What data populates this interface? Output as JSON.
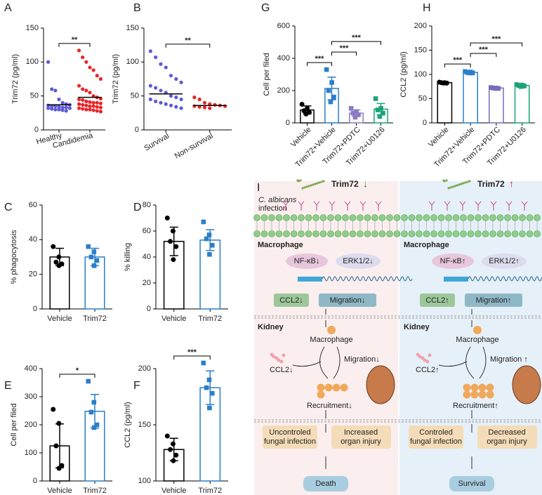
{
  "chart_data": [
    {
      "type": "dot",
      "panel": "A",
      "ylabel": "Trim72 (pg/ml)",
      "categories": [
        "Healthy",
        "Candidemia"
      ],
      "colors": [
        "#5b5bd6",
        "#e8262a"
      ],
      "points": [
        [
          100,
          60,
          58,
          45,
          40,
          38,
          37,
          36,
          35,
          35,
          34,
          33,
          33,
          32,
          32,
          31,
          30,
          30,
          29,
          28
        ],
        [
          117,
          107,
          100,
          92,
          88,
          80,
          75,
          65,
          60,
          58,
          55,
          50,
          48,
          46,
          45,
          44,
          42,
          41,
          40,
          40,
          39,
          38,
          37,
          36,
          35,
          35,
          34,
          33,
          32,
          31,
          30,
          30,
          29,
          28,
          27
        ]
      ],
      "values": [
        37,
        48
      ],
      "ylim": [
        0,
        150
      ],
      "yticks": [
        0,
        50,
        100,
        150
      ],
      "annotations": [
        {
          "text": "**",
          "between": [
            0,
            1
          ]
        }
      ]
    },
    {
      "type": "dot",
      "panel": "B",
      "ylabel": "Trim72 (pg/ml)",
      "categories": [
        "Survival",
        "Non-survival"
      ],
      "colors": [
        "#5b5bd6",
        "#e8262a"
      ],
      "points": [
        [
          116,
          107,
          97,
          92,
          80,
          75,
          70,
          65,
          62,
          58,
          55,
          50,
          48,
          45,
          45,
          42,
          40,
          38,
          36,
          34,
          32
        ],
        [
          48,
          45,
          40,
          38,
          37,
          36,
          35,
          35,
          34,
          33,
          32
        ]
      ],
      "values": [
        53,
        36
      ],
      "ylim": [
        0,
        150
      ],
      "yticks": [
        0,
        50,
        100,
        150
      ],
      "annotations": [
        {
          "text": "**",
          "between": [
            0,
            1
          ]
        }
      ]
    },
    {
      "type": "bar",
      "panel": "C",
      "ylabel": "% phagocytosis",
      "categories": [
        "Vehicle",
        "Trim72"
      ],
      "colors": [
        "#000000",
        "#2a7fc9"
      ],
      "values": [
        30,
        30
      ],
      "errors": [
        5,
        5
      ],
      "points": [
        [
          36,
          30,
          27,
          26,
          25
        ],
        [
          36,
          33,
          30,
          28,
          25
        ]
      ],
      "ylim": [
        0,
        60
      ],
      "yticks": [
        0,
        20,
        40,
        60
      ],
      "annotations": []
    },
    {
      "type": "bar",
      "panel": "D",
      "ylabel": "% killing",
      "categories": [
        "Vehicle",
        "Trim72"
      ],
      "colors": [
        "#000000",
        "#2a7fc9"
      ],
      "values": [
        52,
        53
      ],
      "errors": [
        11,
        8
      ],
      "points": [
        [
          70,
          60,
          52,
          48,
          38
        ],
        [
          67,
          57,
          54,
          49,
          42
        ]
      ],
      "ylim": [
        0,
        80
      ],
      "yticks": [
        0,
        20,
        40,
        60,
        80
      ],
      "annotations": []
    },
    {
      "type": "bar",
      "panel": "E",
      "ylabel": "Cell per filed",
      "categories": [
        "Vehicle",
        "Trim72"
      ],
      "colors": [
        "#000000",
        "#2a7fc9"
      ],
      "values": [
        125,
        248
      ],
      "errors": [
        78,
        60
      ],
      "points": [
        [
          255,
          205,
          125,
          55,
          45
        ],
        [
          355,
          280,
          245,
          200,
          190
        ]
      ],
      "ylim": [
        0,
        400
      ],
      "yticks": [
        0,
        100,
        200,
        300,
        400
      ],
      "annotations": [
        {
          "text": "*",
          "between": [
            0,
            1
          ]
        }
      ]
    },
    {
      "type": "bar",
      "panel": "F",
      "ylabel": "CCL2 (pg/ml)",
      "categories": [
        "Vehicle",
        "Trim72"
      ],
      "colors": [
        "#000000",
        "#2a7fc9"
      ],
      "values": [
        128,
        183
      ],
      "errors": [
        10,
        15
      ],
      "points": [
        [
          140,
          133,
          128,
          123,
          118
        ],
        [
          205,
          190,
          183,
          178,
          165
        ]
      ],
      "ylim": [
        100,
        200
      ],
      "yticks": [
        100,
        150,
        200
      ],
      "annotations": [
        {
          "text": "***",
          "between": [
            0,
            1
          ]
        }
      ]
    },
    {
      "type": "bar",
      "panel": "G",
      "ylabel": "Cell per filed",
      "categories": [
        "Vehicle",
        "Trim72+Vehicle",
        "Trim72+PDTC",
        "Trim72+U0126"
      ],
      "colors": [
        "#000000",
        "#2a7fc9",
        "#8b7bc2",
        "#1aa37a"
      ],
      "values": [
        80,
        213,
        60,
        85
      ],
      "errors": [
        25,
        70,
        20,
        35
      ],
      "points": [
        [
          115,
          90,
          75,
          65,
          55
        ],
        [
          330,
          250,
          200,
          160,
          130
        ],
        [
          90,
          70,
          60,
          50,
          35
        ],
        [
          150,
          90,
          80,
          60,
          40
        ]
      ],
      "ylim": [
        0,
        600
      ],
      "yticks": [
        0,
        200,
        400,
        600
      ],
      "annotations": [
        {
          "text": "***",
          "between": [
            0,
            1
          ]
        },
        {
          "text": "***",
          "between": [
            1,
            2
          ]
        },
        {
          "text": "***",
          "between": [
            1,
            3
          ]
        }
      ]
    },
    {
      "type": "bar",
      "panel": "H",
      "ylabel": "CCL2 (pg/ml)",
      "categories": [
        "Vehicle",
        "Trim72+Vehicle",
        "Trim72+PDTC",
        "Trim72+U0126"
      ],
      "colors": [
        "#000000",
        "#2a7fc9",
        "#7b6bb4",
        "#1aa37a"
      ],
      "values": [
        83,
        104,
        72,
        77
      ],
      "errors": [
        2,
        3,
        2,
        3
      ],
      "points": [
        [
          84,
          83,
          83,
          82,
          82
        ],
        [
          106,
          105,
          104,
          103,
          103
        ],
        [
          73,
          72,
          72,
          71,
          71
        ],
        [
          79,
          78,
          77,
          76,
          75
        ]
      ],
      "ylim": [
        0,
        200
      ],
      "yticks": [
        0,
        50,
        100,
        150,
        200
      ],
      "annotations": [
        {
          "text": "***",
          "between": [
            0,
            1
          ]
        },
        {
          "text": "***",
          "between": [
            1,
            2
          ]
        },
        {
          "text": "***",
          "between": [
            1,
            3
          ]
        }
      ]
    }
  ],
  "diagram": {
    "panel": "I",
    "pathogen": [
      "C. albicans",
      "infection"
    ],
    "sides": [
      {
        "trim": "Trim72",
        "trim_arrow": "↓",
        "macrophage": "Macrophage",
        "nfkb": "NF-κB↓",
        "erk": "ERK1/2↓",
        "ccl2": "CCL2↓",
        "migration": "Migration↓",
        "kidney": "Kidney",
        "kidney_macrophage": "Macrophage",
        "kidney_ccl2": "CCL2↓",
        "kidney_migration": "Migration↓",
        "recruitment": "Recruitment↓",
        "outcome_left": [
          "Uncontroled",
          "fungal infection"
        ],
        "outcome_right": [
          "Increased",
          "organ injury"
        ],
        "final": "Death"
      },
      {
        "trim": "Trim72",
        "trim_arrow": "↑",
        "macrophage": "Macrophage",
        "nfkb": "NF-κB↑",
        "erk": "ERK1/2↑",
        "ccl2": "CCL2↑",
        "migration": "Migration↑",
        "kidney": "Kidney",
        "kidney_macrophage": "Macrophage",
        "kidney_ccl2": "CCL2↑",
        "kidney_migration": "Migration ↑",
        "recruitment": "Recruitment↑",
        "outcome_left": [
          "Controled",
          "fungal infection"
        ],
        "outcome_right": [
          "Decreased",
          "organ injury"
        ],
        "final": "Survival"
      }
    ]
  }
}
